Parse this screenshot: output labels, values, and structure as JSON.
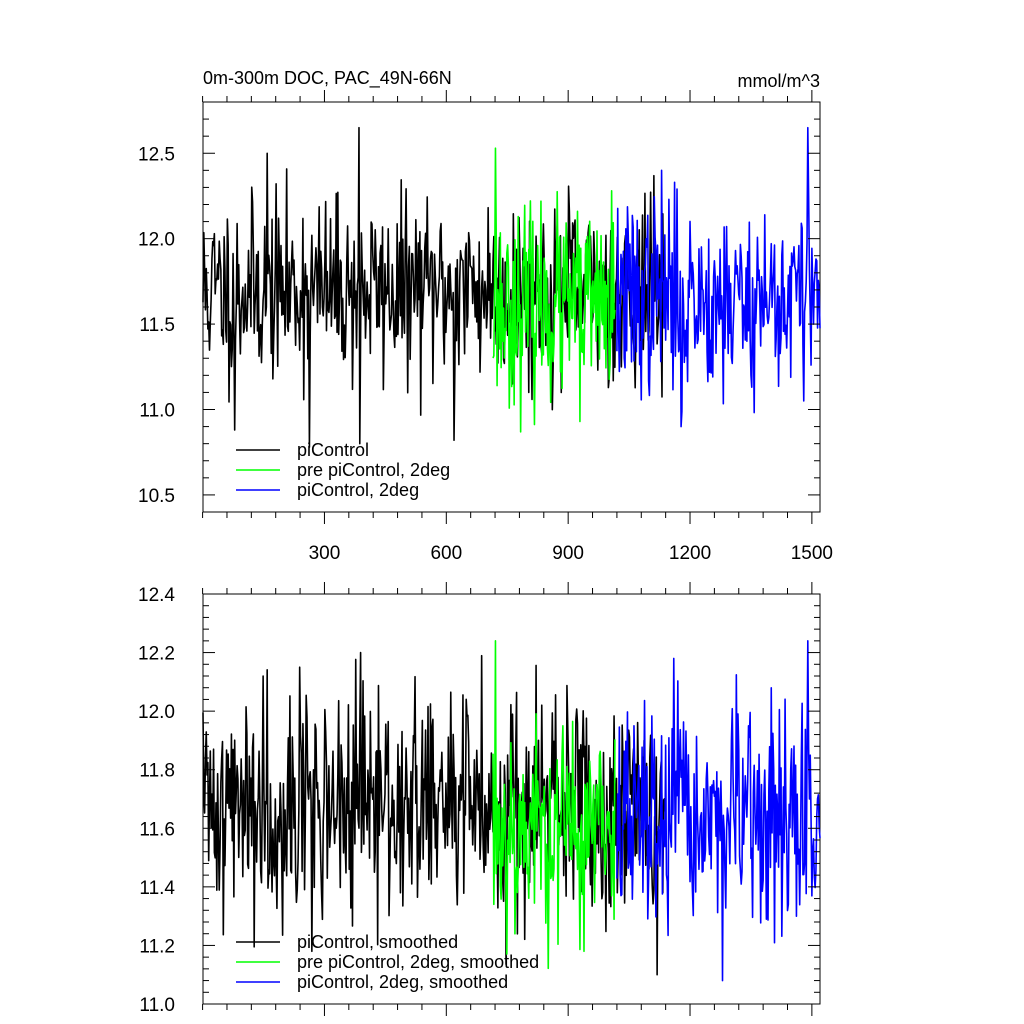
{
  "chart_data": [
    {
      "type": "line",
      "title": "0m-300m DOC, PAC_49N-66N",
      "units": "mmol/m^3",
      "xlim": [
        1,
        1520
      ],
      "ylim": [
        10.4,
        12.8
      ],
      "xticks": [
        300,
        600,
        900,
        1200,
        1500
      ],
      "yticks": [
        10.5,
        11.0,
        11.5,
        12.0,
        12.5
      ],
      "ytick_labels": [
        "10.5",
        "11.0",
        "11.5",
        "12.0",
        "12.5"
      ],
      "show_xtick_labels": true,
      "grid": false,
      "legend": {
        "position": "bottom-left"
      },
      "series": [
        {
          "name": "piControl",
          "color": "#000000",
          "x_start": 1,
          "x_end": 1140,
          "mean": 11.7,
          "sd": 0.26,
          "seed": 11,
          "peaks": [
            [
              263,
              10.78
            ],
            [
              386,
              12.65
            ],
            [
              388,
              10.8
            ],
            [
              620,
              10.82
            ],
            [
              160,
              12.5
            ],
            [
              80,
              10.88
            ]
          ]
        },
        {
          "name": "pre piControl, 2deg",
          "color": "#00ff00",
          "x_start": 715,
          "x_end": 1015,
          "mean": 11.6,
          "sd": 0.27,
          "seed": 23,
          "peaks": [
            [
              722,
              12.53
            ],
            [
              930,
              10.93
            ]
          ]
        },
        {
          "name": "piControl, 2deg",
          "color": "#0000ff",
          "x_start": 1020,
          "x_end": 1520,
          "mean": 11.65,
          "sd": 0.28,
          "seed": 37,
          "peaks": [
            [
              1490,
              12.65
            ],
            [
              1130,
              12.4
            ],
            [
              1178,
              10.9
            ]
          ]
        }
      ]
    },
    {
      "type": "line",
      "title": "",
      "xlim": [
        1,
        1520
      ],
      "ylim": [
        11.0,
        12.4
      ],
      "xticks": [
        300,
        600,
        900,
        1200,
        1500
      ],
      "yticks": [
        11.0,
        11.2,
        11.4,
        11.6,
        11.8,
        12.0,
        12.2,
        12.4
      ],
      "ytick_labels": [
        "11.0",
        "11.2",
        "11.4",
        "11.6",
        "11.8",
        "12.0",
        "12.2",
        "12.4"
      ],
      "show_xtick_labels": false,
      "grid": false,
      "legend": {
        "position": "bottom-left"
      },
      "series": [
        {
          "name": "piControl, smoothed",
          "color": "#000000",
          "x_start": 1,
          "x_end": 1140,
          "mean": 11.68,
          "sd": 0.19,
          "seed": 41,
          "peaks": [
            [
              150,
              12.12
            ],
            [
              240,
              12.15
            ],
            [
              390,
              12.2
            ],
            [
              1120,
              11.1
            ],
            [
              270,
              11.18
            ]
          ]
        },
        {
          "name": "pre piControl, 2deg, smoothed",
          "color": "#00ff00",
          "x_start": 715,
          "x_end": 1015,
          "mean": 11.6,
          "sd": 0.18,
          "seed": 53,
          "peaks": [
            [
              722,
              12.24
            ],
            [
              940,
              11.18
            ]
          ]
        },
        {
          "name": "piControl, 2deg, smoothed",
          "color": "#0000ff",
          "x_start": 1020,
          "x_end": 1520,
          "mean": 11.62,
          "sd": 0.19,
          "seed": 67,
          "peaks": [
            [
              1490,
              12.24
            ],
            [
              1160,
              12.18
            ]
          ]
        }
      ]
    }
  ]
}
